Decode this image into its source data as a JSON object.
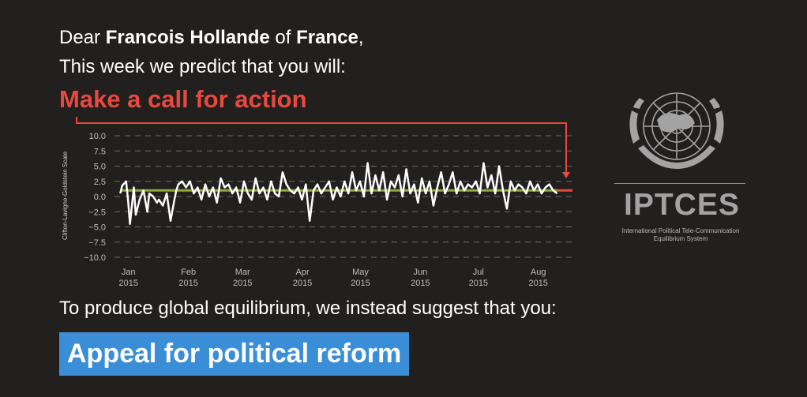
{
  "letter": {
    "salutation": "Dear",
    "leader": "Francois Hollande",
    "of_word": "of",
    "country": "France",
    "comma": ",",
    "intro": "This week we predict that you will:",
    "prediction": "Make a call for action",
    "suggest": "To produce global equilibrium, we instead suggest that you:",
    "action": "Appeal for political reform"
  },
  "colors": {
    "background": "#221f1f",
    "prediction": "#e8493f",
    "action_box": "#3a8ed7",
    "series_line": "#ffffff",
    "baseline": "#8cad3b",
    "forecast": "#e8493f",
    "logo": "#a3a3a3"
  },
  "logo": {
    "icon": "un-emblem-icon",
    "name": "IPTCES",
    "subtitle_line1": "International Political Tele-Communication",
    "subtitle_line2": "Equilibrium System"
  },
  "chart_data": {
    "type": "line",
    "ylabel": "Clifton-Lavigne-Goldstein Scale",
    "ylim": [
      -10,
      10
    ],
    "yticks": [
      "10.0",
      "7.5",
      "5.0",
      "2.5",
      "0.0",
      "−2.5",
      "−5.0",
      "−7.5",
      "−10.0"
    ],
    "ytick_values": [
      10,
      7.5,
      5,
      2.5,
      0,
      -2.5,
      -5,
      -7.5,
      -10
    ],
    "xticks": [
      {
        "month": "Jan",
        "year": "2015",
        "date": "2015-01-01"
      },
      {
        "month": "Feb",
        "year": "2015",
        "date": "2015-02-01"
      },
      {
        "month": "Mar",
        "year": "2015",
        "date": "2015-03-01"
      },
      {
        "month": "Apr",
        "year": "2015",
        "date": "2015-04-01"
      },
      {
        "month": "May",
        "year": "2015",
        "date": "2015-05-01"
      },
      {
        "month": "Jun",
        "year": "2015",
        "date": "2015-06-01"
      },
      {
        "month": "Jul",
        "year": "2015",
        "date": "2015-07-01"
      },
      {
        "month": "Aug",
        "year": "2015",
        "date": "2015-08-01"
      }
    ],
    "xlim": [
      "2014-12-28",
      "2015-08-24"
    ],
    "grid": "dashed horizontal",
    "baseline_value": 1.0,
    "forecast_value": 1.0,
    "series": [
      {
        "x": [
          "2014-12-31",
          "2015-01-01",
          "2015-01-03",
          "2015-01-04",
          "2015-01-05",
          "2015-01-07",
          "2015-01-08",
          "2015-01-10",
          "2015-01-12",
          "2015-01-14",
          "2015-01-15",
          "2015-01-17",
          "2015-01-19",
          "2015-01-20",
          "2015-01-22",
          "2015-01-24",
          "2015-01-26",
          "2015-01-28",
          "2015-01-29",
          "2015-01-30",
          "2015-02-01",
          "2015-02-03",
          "2015-02-05",
          "2015-02-07",
          "2015-02-09",
          "2015-02-11",
          "2015-02-13",
          "2015-02-15",
          "2015-02-17",
          "2015-02-19",
          "2015-02-21",
          "2015-02-23",
          "2015-02-25",
          "2015-02-27",
          "2015-03-01",
          "2015-03-03",
          "2015-03-05",
          "2015-03-07",
          "2015-03-09",
          "2015-03-11",
          "2015-03-13",
          "2015-03-15",
          "2015-03-17",
          "2015-03-19",
          "2015-03-21",
          "2015-03-23",
          "2015-03-25",
          "2015-03-27",
          "2015-03-29",
          "2015-03-31",
          "2015-04-02",
          "2015-04-04",
          "2015-04-06",
          "2015-04-08",
          "2015-04-10",
          "2015-04-12",
          "2015-04-14",
          "2015-04-16",
          "2015-04-18",
          "2015-04-20",
          "2015-04-22",
          "2015-04-24",
          "2015-04-26",
          "2015-04-28",
          "2015-04-30",
          "2015-05-02",
          "2015-05-04",
          "2015-05-06",
          "2015-05-08",
          "2015-05-10",
          "2015-05-12",
          "2015-05-14",
          "2015-05-16",
          "2015-05-18",
          "2015-05-20",
          "2015-05-22",
          "2015-05-24",
          "2015-05-26",
          "2015-05-28",
          "2015-05-30",
          "2015-06-01",
          "2015-06-03",
          "2015-06-05",
          "2015-06-07",
          "2015-06-09",
          "2015-06-11",
          "2015-06-13",
          "2015-06-15",
          "2015-06-17",
          "2015-06-19",
          "2015-06-21",
          "2015-06-23",
          "2015-06-25",
          "2015-06-27",
          "2015-06-29",
          "2015-07-01",
          "2015-07-03",
          "2015-07-05",
          "2015-07-07",
          "2015-07-09",
          "2015-07-11",
          "2015-07-13",
          "2015-07-15",
          "2015-07-17",
          "2015-07-19",
          "2015-07-21",
          "2015-07-23",
          "2015-07-25",
          "2015-07-27",
          "2015-07-29",
          "2015-07-31",
          "2015-08-02",
          "2015-08-04",
          "2015-08-06",
          "2015-08-08",
          "2015-08-10",
          "2015-08-12",
          "2015-08-14"
        ],
        "y": [
          0.5,
          1.8,
          2.5,
          -0.5,
          -4.5,
          1.5,
          -3.0,
          -0.5,
          1.0,
          -2.5,
          0.5,
          0.0,
          -1.0,
          -0.5,
          -1.5,
          0.5,
          -4.0,
          -0.5,
          1.0,
          2.0,
          2.5,
          1.5,
          2.5,
          0.5,
          1.5,
          -0.5,
          2.0,
          0.0,
          1.5,
          -1.0,
          3.0,
          1.5,
          2.0,
          0.5,
          1.5,
          -1.0,
          2.5,
          0.5,
          -0.5,
          3.0,
          0.5,
          1.5,
          -0.5,
          2.5,
          0.5,
          0.0,
          4.0,
          2.0,
          1.0,
          0.5,
          1.5,
          -0.5,
          2.0,
          -4.0,
          1.0,
          2.0,
          0.5,
          1.5,
          2.5,
          -0.5,
          1.5,
          0.0,
          2.5,
          0.5,
          4.0,
          1.0,
          2.5,
          0.0,
          5.5,
          0.5,
          3.5,
          1.0,
          4.0,
          -0.5,
          2.5,
          1.5,
          3.5,
          0.0,
          4.5,
          0.5,
          2.0,
          -1.0,
          3.0,
          0.5,
          2.5,
          -1.5,
          1.5,
          4.0,
          0.5,
          2.0,
          4.0,
          0.5,
          2.5,
          1.0,
          2.0,
          1.5,
          2.5,
          0.5,
          5.5,
          1.5,
          3.5,
          0.5,
          5.0,
          1.0,
          -2.0,
          2.5,
          1.0,
          2.0,
          1.5,
          0.5,
          2.5,
          1.0,
          2.0,
          0.5,
          1.5,
          2.0,
          1.0,
          0.5
        ]
      }
    ]
  }
}
